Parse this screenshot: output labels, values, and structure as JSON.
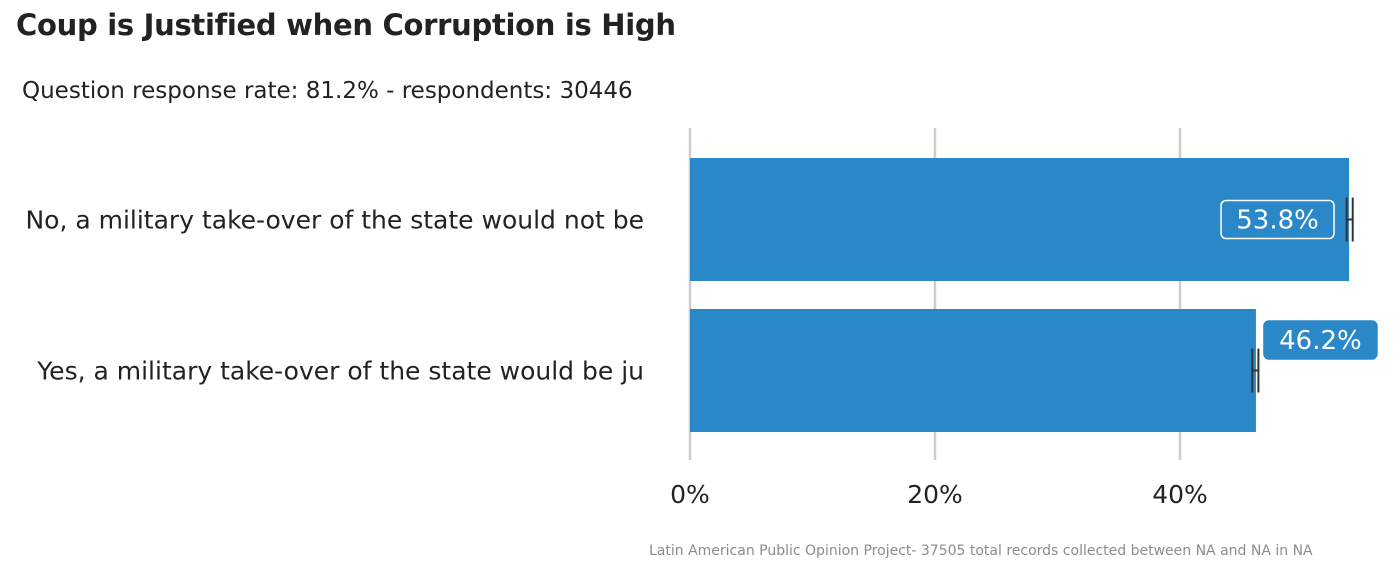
{
  "chart_data": {
    "type": "bar",
    "orientation": "horizontal",
    "title": "Coup is Justified when Corruption is High",
    "subtitle": "Question response rate: 81.2%  - respondents: 30446",
    "categories": [
      "No, a military take-over of the state would not be",
      "Yes, a military take-over of the state would be ju"
    ],
    "values": [
      53.8,
      46.2
    ],
    "data_labels": [
      "53.8%",
      "46.2%"
    ],
    "error_bars": [
      [
        53.6,
        54.1
      ],
      [
        45.9,
        46.4
      ]
    ],
    "xlim": [
      0,
      56
    ],
    "x_ticks": [
      0,
      20,
      40
    ],
    "x_tick_labels": [
      "0%",
      "20%",
      "40%"
    ],
    "grid": true,
    "caption": "Latin American Public Opinion Project- 37505 total records collected between NA and NA in  NA",
    "colors": {
      "bar": "#2b88c8",
      "grid": "#cccccc",
      "errorbar": "#333333",
      "label_fill": "#2b88c8",
      "label_text": "#ffffff"
    }
  }
}
